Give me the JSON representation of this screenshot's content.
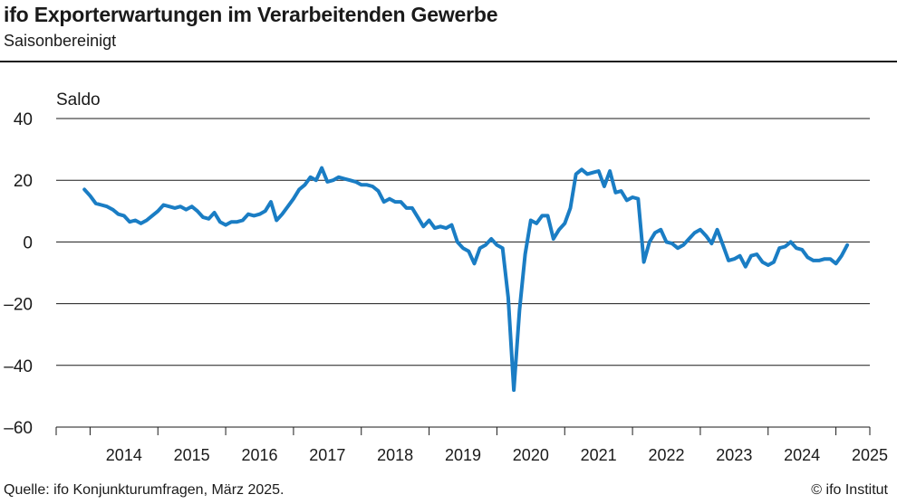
{
  "header": {
    "title": "ifo Exporterwartungen im Verarbeitenden Gewerbe",
    "subtitle": "Saisonbereinigt"
  },
  "footer": {
    "source": "Quelle:  ifo Konjunkturumfragen,  März 2025.",
    "copyright": "© ifo Institut"
  },
  "colors": {
    "line": "#1a7dc4",
    "grid": "#1a1a1a",
    "text": "#1a1a1a"
  },
  "chart_data": {
    "type": "line",
    "title": "ifo Exporterwartungen im Verarbeitenden Gewerbe",
    "subtitle": "Saisonbereinigt",
    "ylabel": "Saldo",
    "xlabel": "",
    "ylim": [
      -60,
      40
    ],
    "yticks": [
      40,
      20,
      0,
      -20,
      -40,
      -60
    ],
    "ytick_labels": [
      "40",
      "20",
      "0",
      "–20",
      "–40",
      "–60"
    ],
    "xlim": [
      2013.5,
      2025.5
    ],
    "xtick_labels": [
      "2014",
      "2015",
      "2016",
      "2017",
      "2018",
      "2019",
      "2020",
      "2021",
      "2022",
      "2023",
      "2024",
      "2025"
    ],
    "grid": "horizontal",
    "series": [
      {
        "name": "",
        "x_start": "2013-12",
        "frequency": "monthly",
        "values": [
          17,
          15,
          12.5,
          12,
          11.5,
          10.5,
          9,
          8.5,
          6.5,
          7,
          6,
          7,
          8.5,
          10,
          12,
          11.5,
          11,
          11.5,
          10.5,
          11.5,
          10,
          8,
          7.5,
          9.5,
          6.5,
          5.5,
          6.5,
          6.5,
          7,
          9,
          8.5,
          9,
          10,
          13,
          7,
          9,
          11.5,
          14,
          17,
          18.5,
          21,
          20,
          24,
          19.5,
          20,
          21,
          20.5,
          20,
          19.5,
          18.5,
          18.5,
          18,
          16.5,
          13,
          14,
          13,
          13,
          11,
          11,
          8,
          5,
          7,
          4.5,
          5,
          4.5,
          5.5,
          0,
          -2,
          -3,
          -7,
          -2,
          -1,
          1,
          -1,
          -2,
          -18,
          -48,
          -22,
          -4,
          7,
          6,
          8.5,
          8.5,
          1,
          4,
          6,
          11,
          22,
          23.5,
          22,
          22.5,
          23,
          18,
          23,
          16,
          16.5,
          13.5,
          14.5,
          14,
          -6.5,
          0,
          3,
          4,
          0,
          -0.5,
          -2,
          -1,
          1,
          3,
          4,
          2,
          -0.5,
          4,
          -1,
          -6,
          -5.5,
          -4.5,
          -8,
          -4.5,
          -4,
          -6.5,
          -7.5,
          -6.5,
          -2,
          -1.5,
          0,
          -2,
          -2.5,
          -5,
          -6,
          -6,
          -5.5,
          -5.5,
          -7,
          -4.5,
          -1
        ]
      }
    ]
  }
}
